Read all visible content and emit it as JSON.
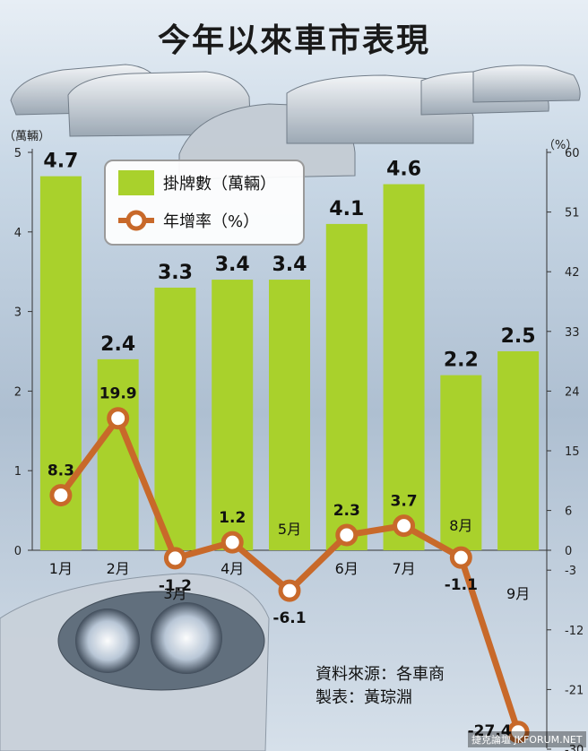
{
  "title": "今年以來車市表現",
  "source_lines": [
    "資料來源：各車商",
    "製表：黃琮淵"
  ],
  "watermark": "捷克論壇 JKFORUM.NET",
  "legend": {
    "bar_label": "掛牌數（萬輛）",
    "line_label": "年增率（%）"
  },
  "colors": {
    "bar": "#a9d12c",
    "line": "#c8692a",
    "marker_fill": "#ffffff"
  },
  "chart_data": {
    "type": "bar",
    "categories": [
      "1月",
      "2月",
      "3月",
      "4月",
      "5月",
      "6月",
      "7月",
      "8月",
      "9月"
    ],
    "left_axis": {
      "unit": "（萬輛）",
      "ylim": [
        0,
        5
      ],
      "ticks": [
        "0",
        "1",
        "2",
        "3",
        "4",
        "5"
      ]
    },
    "right_axis": {
      "unit": "（%）",
      "ylim": [
        -30,
        60
      ],
      "ticks": [
        "60",
        "51",
        "42",
        "33",
        "24",
        "15",
        "6",
        "0",
        "-3",
        "-12",
        "-21",
        "-30"
      ]
    },
    "series": [
      {
        "name": "掛牌數（萬輛）",
        "type": "bar",
        "axis": "left",
        "values": [
          4.7,
          2.4,
          3.3,
          3.4,
          3.4,
          4.1,
          4.6,
          2.2,
          2.5
        ],
        "labels": [
          "4.7",
          "2.4",
          "3.3",
          "3.4",
          "3.4",
          "4.1",
          "4.6",
          "2.2",
          "2.5"
        ]
      },
      {
        "name": "年增率（%）",
        "type": "line",
        "axis": "right",
        "values": [
          8.3,
          19.9,
          -1.2,
          1.2,
          -6.1,
          2.3,
          3.7,
          -1.1,
          -27.4
        ],
        "labels": [
          "8.3",
          "19.9",
          "-1.2",
          "1.2",
          "-6.1",
          "2.3",
          "3.7",
          "-1.1",
          "-27.4"
        ]
      }
    ],
    "grid": false,
    "legend_position": "top-left"
  }
}
